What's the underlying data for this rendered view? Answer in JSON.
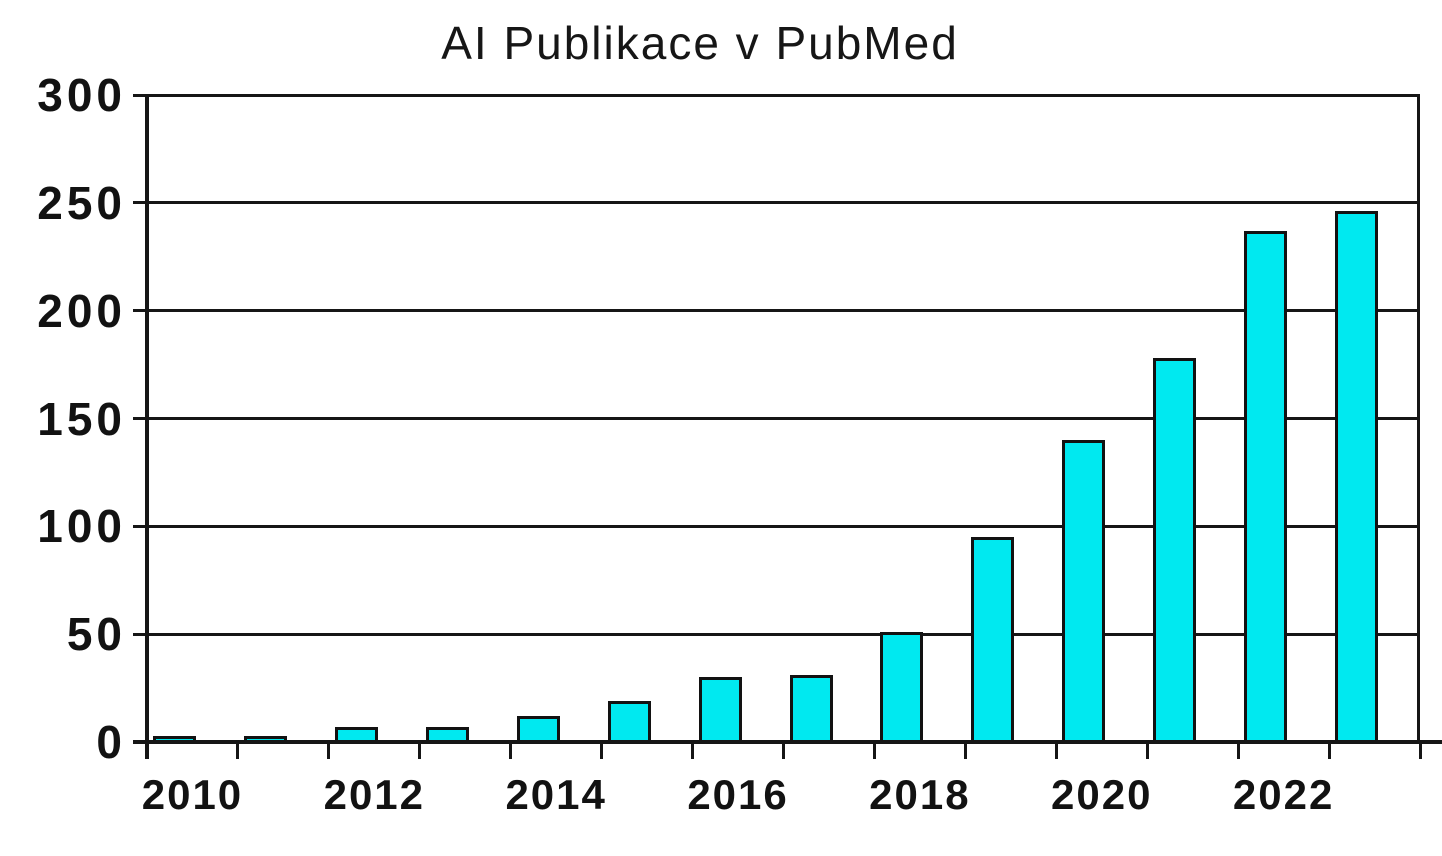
{
  "title": "AI Publikace v PubMed",
  "chart_data": {
    "type": "bar",
    "title": "AI Publikace v PubMed",
    "categories": [
      "2010",
      "2011",
      "2012",
      "2013",
      "2014",
      "2015",
      "2016",
      "2017",
      "2018",
      "2019",
      "2020",
      "2021",
      "2022",
      "2023"
    ],
    "values": [
      3,
      3,
      7,
      7,
      12,
      19,
      30,
      31,
      51,
      95,
      140,
      178,
      237,
      246
    ],
    "xlabel": "",
    "ylabel": "",
    "ylim": [
      0,
      300
    ],
    "yticks": [
      0,
      50,
      100,
      150,
      200,
      250,
      300
    ],
    "ytick_labels": [
      "0",
      "50",
      "100",
      "150",
      "200",
      "250",
      "300"
    ],
    "xtick_labels": [
      "2010",
      "2012",
      "2014",
      "2016",
      "2018",
      "2020",
      "2022"
    ],
    "xtick_label_slots": [
      0,
      2,
      4,
      6,
      8,
      10,
      12
    ],
    "grid": true,
    "legend": false,
    "colors": {
      "bar_fill": "#00E9F0",
      "bar_border": "#121212",
      "axis": "#161616",
      "text": "#121212",
      "background": "#ffffff"
    }
  }
}
